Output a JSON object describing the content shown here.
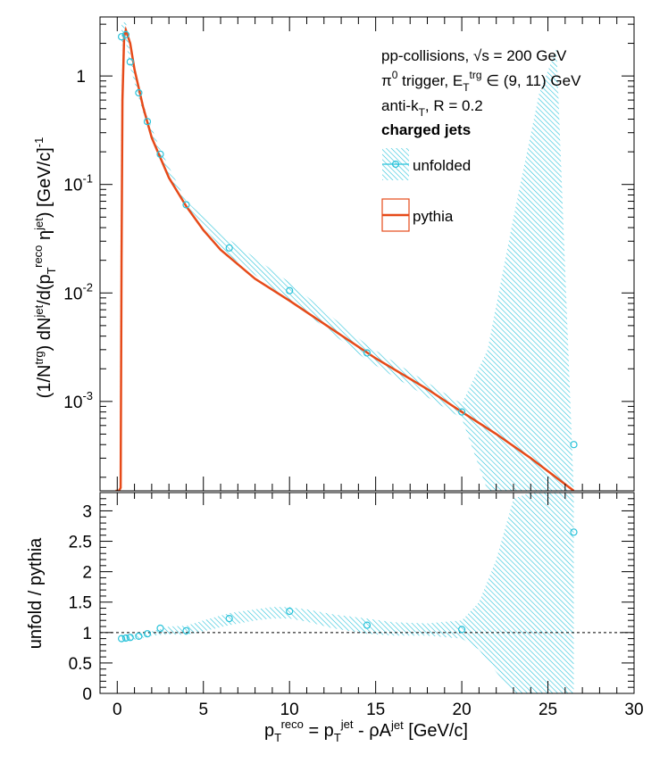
{
  "chart_data": [
    {
      "type": "line",
      "panel": "spectrum",
      "ylabel": "(1/N^trg) dN^jet/d(p_T^reco η^jet) [GeV/c]^-1",
      "yscale": "log",
      "xlim": [
        -1,
        30
      ],
      "ylim": [
        0.00015,
        3.5
      ],
      "y_tick_labels": [
        "10^-3",
        "10^-2",
        "10^-1",
        "1"
      ],
      "annotations": [
        "pp-collisions, √s = 200 GeV",
        "π^0 trigger, E_T^trg ∈ (9, 11) GeV",
        "anti-k_T, R = 0.2",
        "charged jets"
      ],
      "legend_position": "top-right",
      "series": [
        {
          "name": "unfolded",
          "color": "#29c2d9",
          "style": "markers with hatched uncertainty band",
          "x": [
            0.25,
            0.5,
            0.75,
            1.25,
            1.75,
            2.5,
            4.0,
            6.5,
            10.0,
            14.5,
            20.0,
            26.5
          ],
          "y": [
            2.3,
            2.4,
            1.35,
            0.7,
            0.38,
            0.19,
            0.065,
            0.026,
            0.0105,
            0.0028,
            0.0008,
            0.0004
          ],
          "band_x": [
            0.1,
            0.25,
            0.5,
            0.75,
            1.25,
            1.75,
            2.5,
            4.0,
            6.5,
            10.0,
            14.5,
            20.0,
            21.5,
            23.0,
            24.5,
            25.5,
            26.5
          ],
          "band_low": [
            0.00015,
            1.9,
            2.1,
            1.2,
            0.63,
            0.34,
            0.17,
            0.06,
            0.022,
            0.0085,
            0.0024,
            0.0007,
            0.00015,
            0.00015,
            0.00015,
            0.00015,
            0.00015
          ],
          "band_high": [
            0.00015,
            3.0,
            3.2,
            1.6,
            0.78,
            0.42,
            0.21,
            0.07,
            0.031,
            0.0125,
            0.0033,
            0.00095,
            0.003,
            0.05,
            0.7,
            1.8,
            0.00015
          ]
        },
        {
          "name": "pythia",
          "color": "#e64a19",
          "style": "line",
          "x": [
            -0.1,
            0.1,
            0.2,
            0.25,
            0.3,
            0.4,
            0.5,
            0.75,
            1.0,
            1.5,
            2.0,
            3.0,
            4.0,
            5.0,
            6.0,
            8.0,
            10.0,
            12.0,
            15.0,
            18.0,
            20.0,
            22.0,
            24.0,
            26.5
          ],
          "y": [
            0.00015,
            0.00015,
            0.00016,
            0.02,
            0.6,
            2.3,
            2.65,
            2.0,
            1.15,
            0.52,
            0.27,
            0.115,
            0.063,
            0.038,
            0.025,
            0.0135,
            0.0085,
            0.0052,
            0.0025,
            0.0013,
            0.0008,
            0.0005,
            0.0003,
            0.00015
          ]
        }
      ]
    },
    {
      "type": "line",
      "panel": "ratio",
      "xlabel": "p_T^reco = p_T^jet - ρA^jet [GeV/c]",
      "ylabel": "unfold / pythia",
      "xlim": [
        -1,
        30
      ],
      "ylim": [
        0,
        3.3
      ],
      "x_tick_labels": [
        "0",
        "5",
        "10",
        "15",
        "20",
        "25",
        "30"
      ],
      "y_tick_labels": [
        "0",
        "0.5",
        "1",
        "1.5",
        "2",
        "2.5",
        "3"
      ],
      "reference_line": 1,
      "series": [
        {
          "name": "unfolded",
          "color": "#29c2d9",
          "x": [
            0.25,
            0.5,
            0.75,
            1.25,
            1.75,
            2.5,
            4.0,
            6.5,
            10.0,
            14.5,
            20.0,
            26.5
          ],
          "y": [
            0.9,
            0.91,
            0.92,
            0.94,
            0.98,
            1.07,
            1.03,
            1.23,
            1.35,
            1.12,
            1.05,
            2.65
          ],
          "band_x": [
            0.25,
            1.0,
            2.0,
            3.0,
            4.0,
            5.0,
            6.5,
            8.0,
            9.0,
            10.0,
            11.0,
            12.5,
            14.5,
            16.0,
            18.0,
            20.0,
            21.0,
            22.0,
            23.0,
            24.0,
            25.0,
            26.5
          ],
          "band_low": [
            0.85,
            0.88,
            0.95,
            0.97,
            0.96,
            1.02,
            1.12,
            1.2,
            1.23,
            1.23,
            1.18,
            1.07,
            0.98,
            0.95,
            0.95,
            0.9,
            0.72,
            0.35,
            0.0,
            0.0,
            0.0,
            0.0
          ],
          "band_high": [
            0.95,
            0.97,
            1.02,
            1.1,
            1.11,
            1.2,
            1.32,
            1.38,
            1.42,
            1.42,
            1.38,
            1.3,
            1.23,
            1.17,
            1.15,
            1.2,
            1.5,
            2.2,
            3.2,
            3.3,
            3.3,
            3.3
          ]
        }
      ]
    }
  ]
}
